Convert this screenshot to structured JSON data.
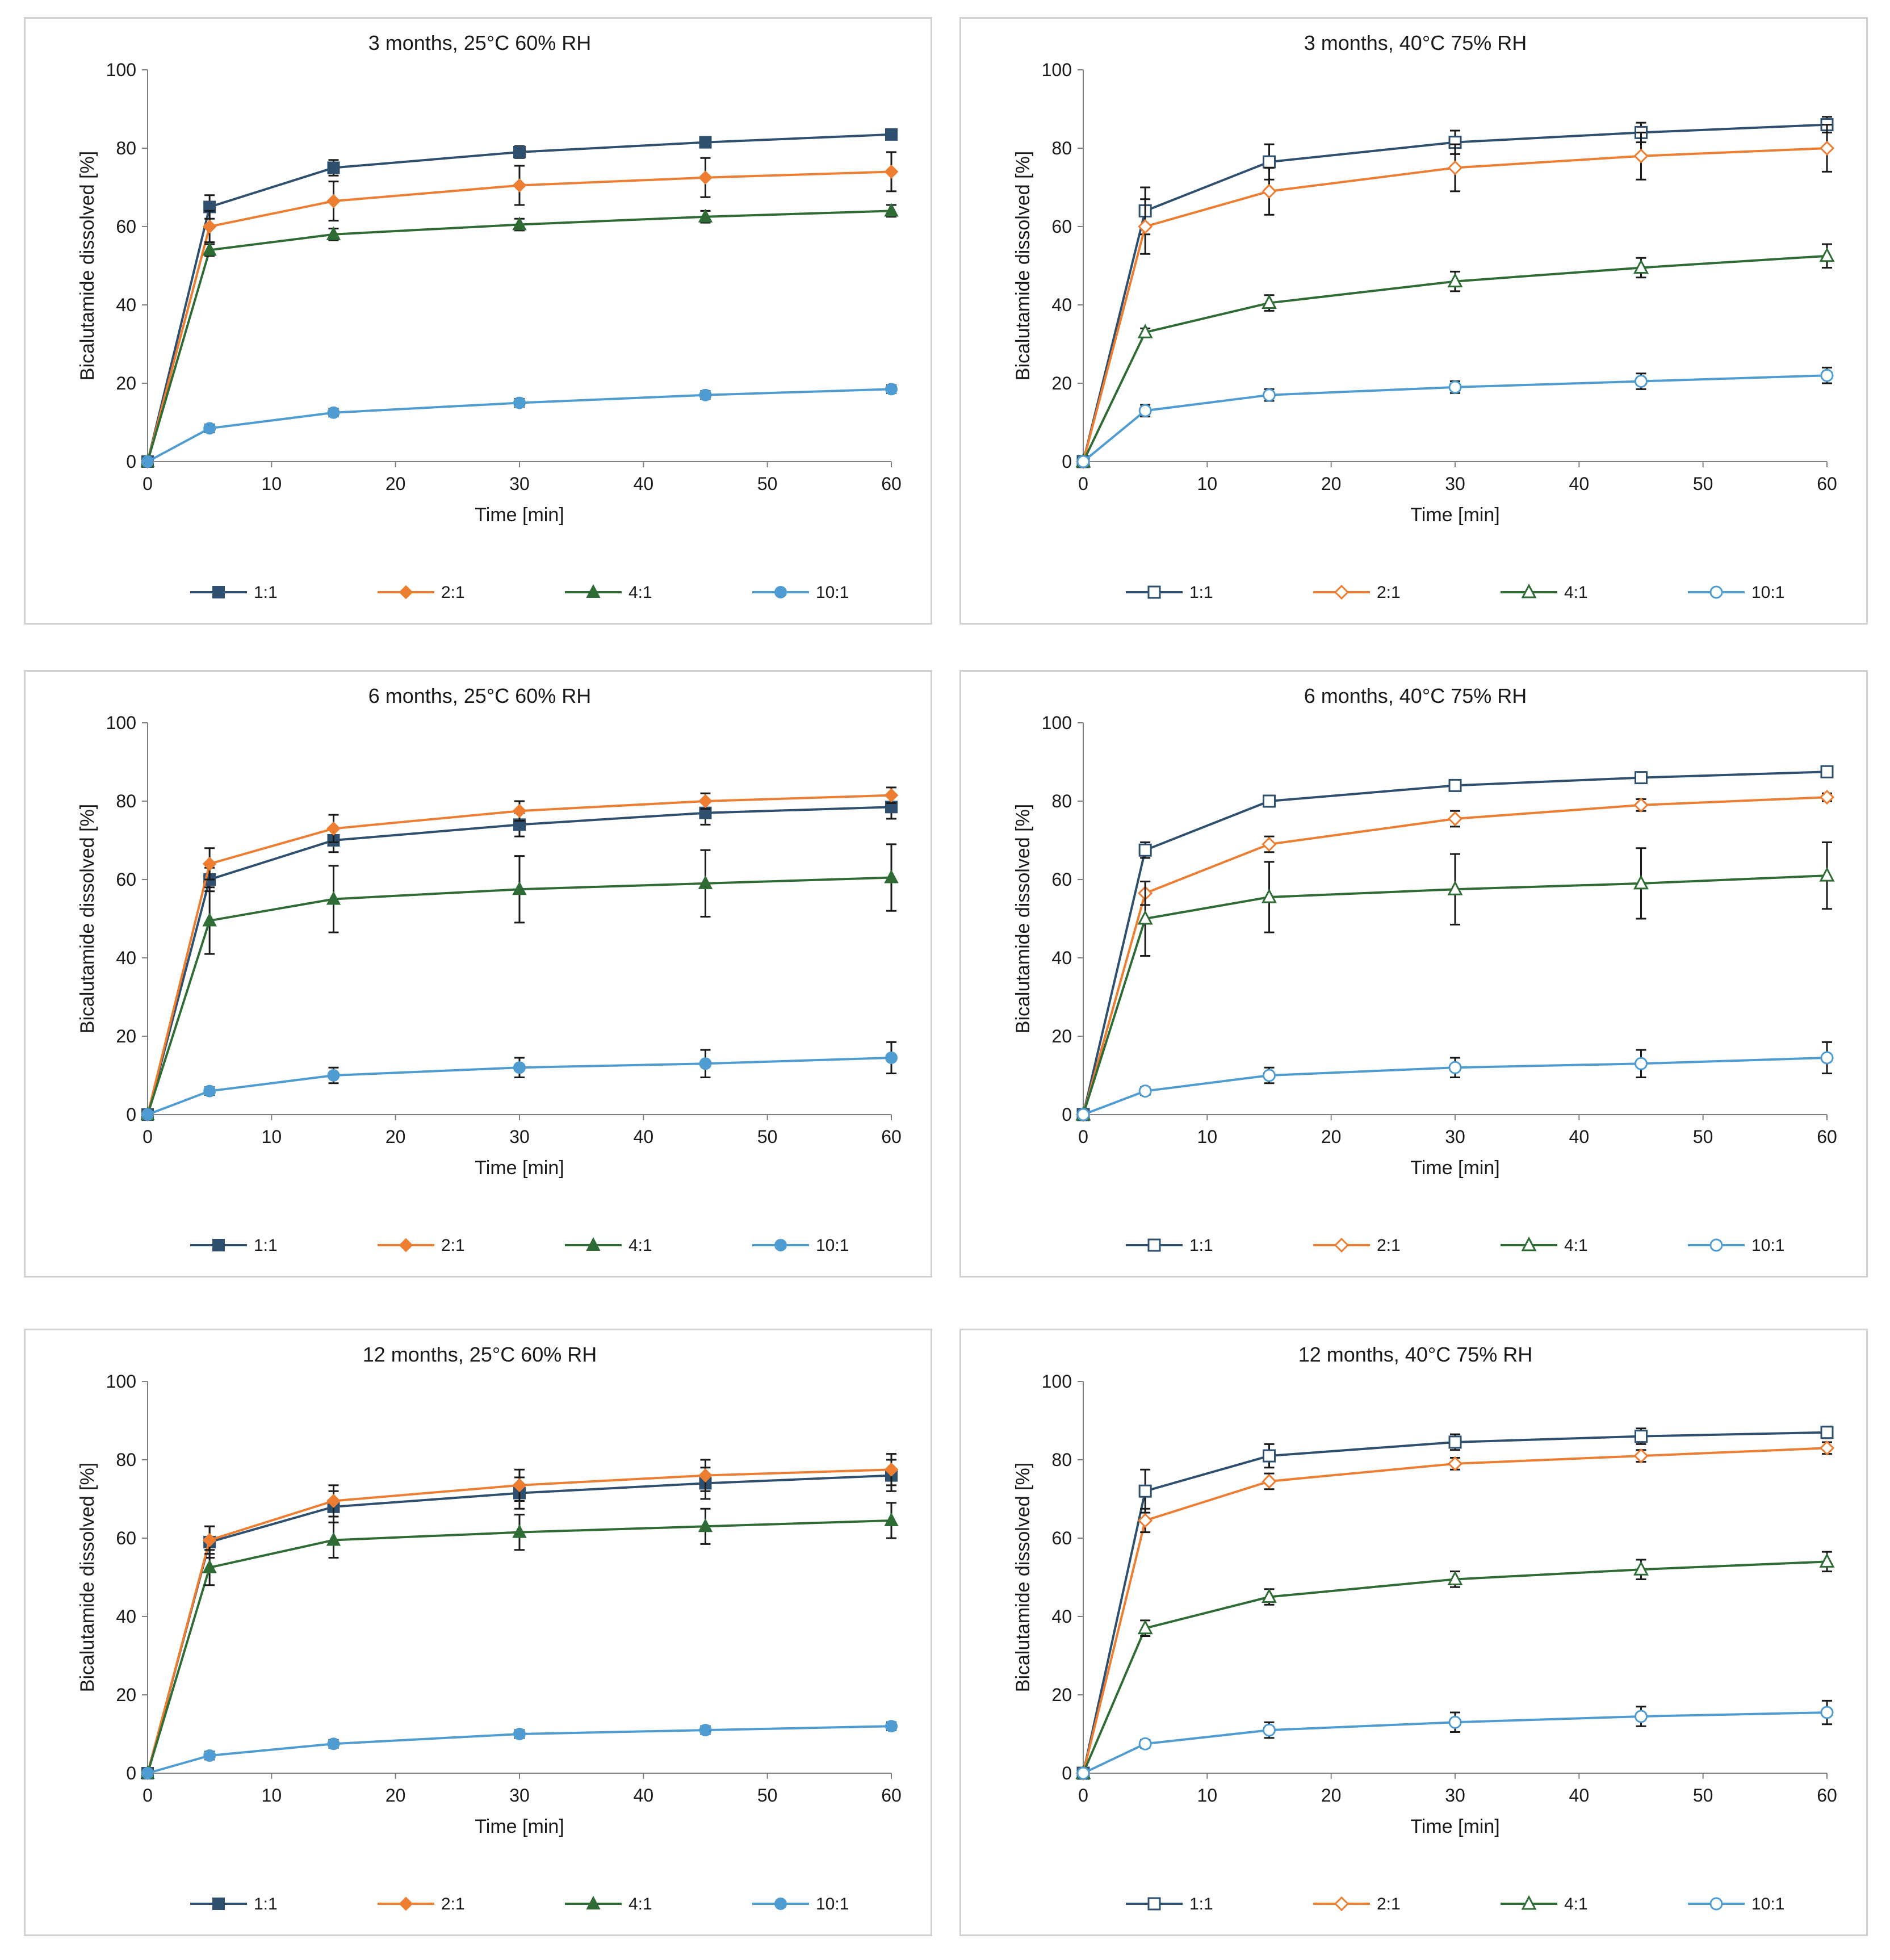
{
  "colors": {
    "s1": "#2e4f6e",
    "s2": "#ed7d31",
    "s3": "#2f6b35",
    "s4": "#4e9cd1",
    "axis": "#7f7f7f",
    "errorbar": "#1a1a1a"
  },
  "chart_data": [
    {
      "type": "line",
      "title": "3 months, 25°C 60% RH",
      "xlabel": "Time [min]",
      "ylabel": "Bicalutamide dissolved [%]",
      "xlim": [
        0,
        60
      ],
      "ylim": [
        0,
        100
      ],
      "xticks": [
        "0",
        "10",
        "20",
        "30",
        "40",
        "50",
        "60"
      ],
      "yticks": [
        "0",
        "20",
        "40",
        "60",
        "80",
        "100"
      ],
      "legend_position": "bottom",
      "marker_fill": "filled",
      "x": [
        0,
        5,
        15,
        30,
        45,
        60
      ],
      "series": [
        {
          "name": "1:1",
          "marker": "square",
          "values": [
            0,
            65,
            75,
            79,
            81.5,
            83.5
          ],
          "errors": [
            0,
            3,
            2,
            1.5,
            1,
            1
          ]
        },
        {
          "name": "2:1",
          "marker": "diamond",
          "values": [
            0,
            60,
            66.5,
            70.5,
            72.5,
            74
          ],
          "errors": [
            0,
            4,
            5,
            5,
            5,
            5
          ]
        },
        {
          "name": "4:1",
          "marker": "triangle",
          "values": [
            0,
            54,
            58,
            60.5,
            62.5,
            64
          ],
          "errors": [
            0,
            1.5,
            1.5,
            1.5,
            1.5,
            1.5
          ]
        },
        {
          "name": "10:1",
          "marker": "circle",
          "values": [
            0,
            8.5,
            12.5,
            15,
            17,
            18.5
          ],
          "errors": [
            0,
            1,
            1,
            1,
            1,
            1
          ]
        }
      ]
    },
    {
      "type": "line",
      "title": "3 months, 40°C 75% RH",
      "xlabel": "Time [min]",
      "ylabel": "Bicalutamide dissolved [%]",
      "xlim": [
        0,
        60
      ],
      "ylim": [
        0,
        100
      ],
      "xticks": [
        "0",
        "10",
        "20",
        "30",
        "40",
        "50",
        "60"
      ],
      "yticks": [
        "0",
        "20",
        "40",
        "60",
        "80",
        "100"
      ],
      "legend_position": "bottom",
      "marker_fill": "open",
      "x": [
        0,
        5,
        15,
        30,
        45,
        60
      ],
      "series": [
        {
          "name": "1:1",
          "marker": "square",
          "values": [
            0,
            64,
            76.5,
            81.5,
            84,
            86
          ],
          "errors": [
            0,
            6,
            4.5,
            3,
            2.5,
            2
          ]
        },
        {
          "name": "2:1",
          "marker": "diamond",
          "values": [
            0,
            60,
            69,
            75,
            78,
            80
          ],
          "errors": [
            0,
            7,
            6,
            6,
            6,
            6
          ]
        },
        {
          "name": "4:1",
          "marker": "triangle",
          "values": [
            0,
            33,
            40.5,
            46,
            49.5,
            52.5
          ],
          "errors": [
            0,
            1,
            2,
            2.5,
            2.5,
            3
          ]
        },
        {
          "name": "10:1",
          "marker": "circle",
          "values": [
            0,
            13,
            17,
            19,
            20.5,
            22
          ],
          "errors": [
            0,
            1.5,
            1.5,
            1.5,
            2,
            2
          ]
        }
      ]
    },
    {
      "type": "line",
      "title": "6 months, 25°C 60% RH",
      "xlabel": "Time [min]",
      "ylabel": "Bicalutamide dissolved [%]",
      "xlim": [
        0,
        60
      ],
      "ylim": [
        0,
        100
      ],
      "xticks": [
        "0",
        "10",
        "20",
        "30",
        "40",
        "50",
        "60"
      ],
      "yticks": [
        "0",
        "20",
        "40",
        "60",
        "80",
        "100"
      ],
      "legend_position": "bottom",
      "marker_fill": "filled",
      "x": [
        0,
        5,
        15,
        30,
        45,
        60
      ],
      "series": [
        {
          "name": "1:1",
          "marker": "square",
          "values": [
            0,
            60,
            70,
            74,
            77,
            78.5
          ],
          "errors": [
            0,
            3,
            3,
            3,
            3,
            3
          ]
        },
        {
          "name": "2:1",
          "marker": "diamond",
          "values": [
            0,
            64,
            73,
            77.5,
            80,
            81.5
          ],
          "errors": [
            0,
            4,
            3.5,
            2.5,
            2,
            2
          ]
        },
        {
          "name": "4:1",
          "marker": "triangle",
          "values": [
            0,
            49.5,
            55,
            57.5,
            59,
            60.5
          ],
          "errors": [
            0,
            8.5,
            8.5,
            8.5,
            8.5,
            8.5
          ]
        },
        {
          "name": "10:1",
          "marker": "circle",
          "values": [
            0,
            6,
            10,
            12,
            13,
            14.5
          ],
          "errors": [
            0,
            1,
            2,
            2.5,
            3.5,
            4
          ]
        }
      ]
    },
    {
      "type": "line",
      "title": "6 months, 40°C 75% RH",
      "xlabel": "Time [min]",
      "ylabel": "Bicalutamide dissolved [%]",
      "xlim": [
        0,
        60
      ],
      "ylim": [
        0,
        100
      ],
      "xticks": [
        "0",
        "10",
        "20",
        "30",
        "40",
        "50",
        "60"
      ],
      "yticks": [
        "0",
        "20",
        "40",
        "60",
        "80",
        "100"
      ],
      "legend_position": "bottom",
      "marker_fill": "open",
      "x": [
        0,
        5,
        15,
        30,
        45,
        60
      ],
      "series": [
        {
          "name": "1:1",
          "marker": "square",
          "values": [
            0,
            67.5,
            80,
            84,
            86,
            87.5
          ],
          "errors": [
            0,
            2,
            1,
            1,
            1,
            1
          ]
        },
        {
          "name": "2:1",
          "marker": "diamond",
          "values": [
            0,
            56.5,
            69,
            75.5,
            79,
            81
          ],
          "errors": [
            0,
            3,
            2,
            2,
            1.5,
            1
          ]
        },
        {
          "name": "4:1",
          "marker": "triangle",
          "values": [
            0,
            50,
            55.5,
            57.5,
            59,
            61
          ],
          "errors": [
            0,
            9.5,
            9,
            9,
            9,
            8.5
          ]
        },
        {
          "name": "10:1",
          "marker": "circle",
          "values": [
            0,
            6,
            10,
            12,
            13,
            14.5
          ],
          "errors": [
            0,
            1,
            2,
            2.5,
            3.5,
            4
          ]
        }
      ]
    },
    {
      "type": "line",
      "title": "12 months, 25°C 60% RH",
      "xlabel": "Time [min]",
      "ylabel": "Bicalutamide dissolved [%]",
      "xlim": [
        0,
        60
      ],
      "ylim": [
        0,
        100
      ],
      "xticks": [
        "0",
        "10",
        "20",
        "30",
        "40",
        "50",
        "60"
      ],
      "yticks": [
        "0",
        "20",
        "40",
        "60",
        "80",
        "100"
      ],
      "legend_position": "bottom",
      "marker_fill": "filled",
      "x": [
        0,
        5,
        15,
        30,
        45,
        60
      ],
      "series": [
        {
          "name": "1:1",
          "marker": "square",
          "values": [
            0,
            59,
            68,
            71.5,
            74,
            76
          ],
          "errors": [
            0,
            4,
            4,
            4,
            4,
            4
          ]
        },
        {
          "name": "2:1",
          "marker": "diamond",
          "values": [
            0,
            59.5,
            69.5,
            73.5,
            76,
            77.5
          ],
          "errors": [
            0,
            3.5,
            4,
            4,
            4,
            4
          ]
        },
        {
          "name": "4:1",
          "marker": "triangle",
          "values": [
            0,
            52.5,
            59.5,
            61.5,
            63,
            64.5
          ],
          "errors": [
            0,
            4.5,
            4.5,
            4.5,
            4.5,
            4.5
          ]
        },
        {
          "name": "10:1",
          "marker": "circle",
          "values": [
            0,
            4.5,
            7.5,
            10,
            11,
            12
          ],
          "errors": [
            0,
            1,
            1,
            1,
            1,
            1
          ]
        }
      ]
    },
    {
      "type": "line",
      "title": "12 months, 40°C 75% RH",
      "xlabel": "Time [min]",
      "ylabel": "Bicalutamide dissolved [%]",
      "xlim": [
        0,
        60
      ],
      "ylim": [
        0,
        100
      ],
      "xticks": [
        "0",
        "10",
        "20",
        "30",
        "40",
        "50",
        "60"
      ],
      "yticks": [
        "0",
        "20",
        "40",
        "60",
        "80",
        "100"
      ],
      "legend_position": "bottom",
      "marker_fill": "open",
      "x": [
        0,
        5,
        15,
        30,
        45,
        60
      ],
      "series": [
        {
          "name": "1:1",
          "marker": "square",
          "values": [
            0,
            72,
            81,
            84.5,
            86,
            87
          ],
          "errors": [
            0,
            5.5,
            3,
            2,
            2,
            1.5
          ]
        },
        {
          "name": "2:1",
          "marker": "diamond",
          "values": [
            0,
            64.5,
            74.5,
            79,
            81,
            83
          ],
          "errors": [
            0,
            3,
            2,
            1.5,
            1.5,
            1.5
          ]
        },
        {
          "name": "4:1",
          "marker": "triangle",
          "values": [
            0,
            37,
            45,
            49.5,
            52,
            54
          ],
          "errors": [
            0,
            2,
            2,
            2,
            2.5,
            2.5
          ]
        },
        {
          "name": "10:1",
          "marker": "circle",
          "values": [
            0,
            7.5,
            11,
            13,
            14.5,
            15.5
          ],
          "errors": [
            0,
            1,
            2,
            2.5,
            2.5,
            3
          ]
        }
      ]
    }
  ]
}
